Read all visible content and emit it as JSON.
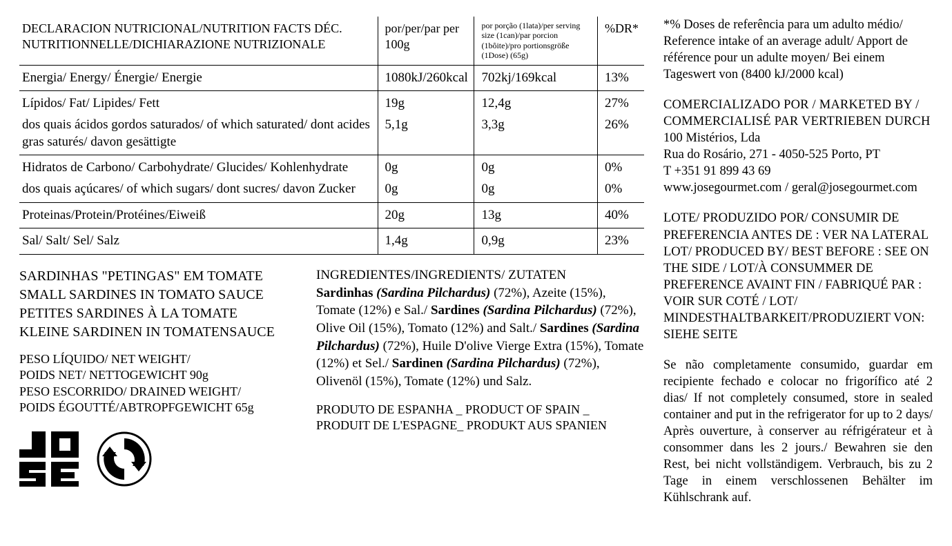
{
  "table": {
    "header": {
      "nutrient": "DECLARACION NUTRICIONAL/NUTRITION FACTS DÉC. NUTRITIONNELLE/DICHIARAZIONE NUTRIZIONALE",
      "per100": "por/per/par per 100g",
      "serving": "por porção (1lata)/per serving size (1can)/par porcion (1bôite)/pro portionsgröße (1Dose) (65g)",
      "dr": "%DR*"
    },
    "rows": [
      {
        "label": "Energia/ Energy/ Énergie/ Energie",
        "per100": "1080kJ/260kcal",
        "serving": "702kj/169kcal",
        "dr": "13%"
      },
      {
        "label": "Lípidos/ Fat/ Lipides/ Fett",
        "per100": "19g",
        "serving": "12,4g",
        "dr": "27%",
        "sub": {
          "label": "dos quais ácidos gordos saturados/ of which saturated/ dont acides gras saturés/ davon gesättigte",
          "per100": "5,1g",
          "serving": "3,3g",
          "dr": "26%"
        }
      },
      {
        "label": "Hidratos de Carbono/ Carbohydrate/ Glucides/ Kohlenhydrate",
        "per100": "0g",
        "serving": "0g",
        "dr": "0%",
        "sub": {
          "label": "dos quais açúcares/ of which sugars/ dont sucres/ davon Zucker",
          "per100": "0g",
          "serving": "0g",
          "dr": "0%"
        }
      },
      {
        "label": "Proteinas/Protein/Protéines/Eiweiß",
        "per100": "20g",
        "serving": "13g",
        "dr": "40%"
      },
      {
        "label": "Sal/ Salt/ Sel/ Salz",
        "per100": "1,4g",
        "serving": "0,9g",
        "dr": "23%"
      }
    ]
  },
  "product": {
    "names": "SARDINHAS \"PETINGAS\" EM TOMATE\nSMALL SARDINES IN TOMATO SAUCE\nPETITES SARDINES À LA TOMATE\nKLEINE SARDINEN IN TOMATENSAUCE",
    "weight": "PESO LÍQUIDO/ NET WEIGHT/\nPOIDS NET/ NETTOGEWICHT 90g\nPESO ESCORRIDO/ DRAINED WEIGHT/\nPOIDS ÉGOUTTÉ/ABTROPFGEWICHT 65g"
  },
  "ingredients": {
    "heading": "INGREDIENTES/INGREDIENTS/ ZUTATEN",
    "pt_pre": "Sardinhas ",
    "pt_lat": "(Sardina Pilchardus)",
    "pt_post": " (72%), Azeite (15%), Tomate (12%) e Sal./ ",
    "en_pre": "Sardines ",
    "en_lat": "(Sardina Pilchardus)",
    "en_post": " (72%), Olive Oil (15%), Tomato (12%) and Salt./ ",
    "fr_pre": "Sardines ",
    "fr_lat": "(Sardina Pilchardus)",
    "fr_post": " (72%), Huile D'olive Vierge Extra (15%), Tomate (12%) et Sel./ ",
    "de_pre": "Sardinen ",
    "de_lat": "(Sardina Pilchardus)",
    "de_post": " (72%), Olivenöl (15%), Tomate (12%) und Salz."
  },
  "origin": "PRODUTO DE ESPANHA _ PRODUCT OF SPAIN _ PRODUIT DE L'ESPAGNE_ PRODUKT AUS SPANIEN",
  "right": {
    "refintake": "*% Doses de referência para um adulto médio/ Reference intake of an average adult/ Apport de référence pour un adulte moyen/ Bei einem Tageswert von (8400 kJ/2000 kcal)",
    "marketed_header": "COMERCIALIZADO POR  / MARKETED BY / COMMERCIALISÉ PAR VERTRIEBEN DURCH",
    "company": "100 Mistérios, Lda",
    "address": "Rua do Rosário, 271 - 4050-525 Porto, PT",
    "phone": "T +351 91 899 43 69",
    "web": "www.josegourmet.com / geral@josegourmet.com",
    "lot": "LOTE/ PRODUZIDO POR/ CONSUMIR DE PREFERENCIA ANTES DE : VER NA LATERAL LOT/ PRODUCED BY/ BEST BEFORE : SEE ON THE SIDE /  LOT/À CONSUMMER DE PREFERENCE AVAINT FIN / FABRIQUÉ PAR : VOIR SUR COTÉ / LOT/ MINDESTHALTBARKEIT/PRODUZIERT VON: SIEHE SEITE",
    "storage": "Se não completamente consumido, guardar em recipiente fechado e colocar no frigorífico até 2 dias/ If not completely consumed, store in sealed container and put in the refrigerator for up to 2 days/ Après ouverture, à conserver au réfrigérateur et à consommer dans les 2 jours./ Bewahren sie den Rest, bei nicht vollständigem. Verbrauch, bis zu 2 Tage in einem verschlossenen Behälter im Kühlschrank auf."
  },
  "logos": {
    "jose": "JOSE",
    "recycle": "green-dot"
  },
  "colors": {
    "text": "#000000",
    "bg": "#ffffff",
    "rule": "#000000"
  }
}
